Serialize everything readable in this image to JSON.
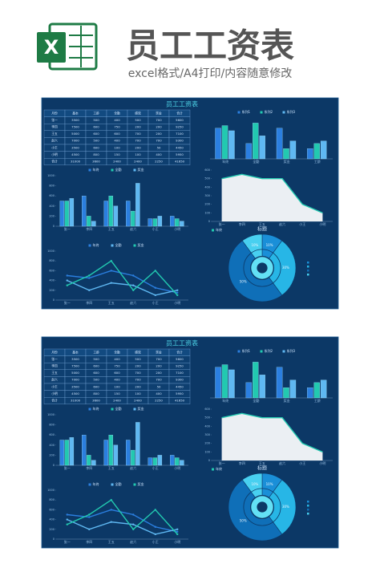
{
  "header": {
    "icon_letter": "X",
    "title": "员工工资表",
    "subtitle": "excel格式/A4打印/内容随意修改"
  },
  "dashboard": {
    "title": "员工工资表",
    "table": {
      "columns": [
        "月份",
        "基本",
        "工龄",
        "全勤",
        "绩效",
        "奖金",
        "合计"
      ],
      "rows": [
        [
          "张一",
          "3500",
          "500",
          "400",
          "500",
          "700",
          "5600"
        ],
        [
          "李四",
          "7500",
          "600",
          "750",
          "200",
          "200",
          "9250"
        ],
        [
          "王五",
          "5000",
          "600",
          "600",
          "700",
          "200",
          "7100"
        ],
        [
          "赵六",
          "7000",
          "500",
          "400",
          "700",
          "700",
          "9300"
        ],
        [
          "小王",
          "3500",
          "600",
          "100",
          "200",
          "50",
          "4450"
        ],
        [
          "小明",
          "4500",
          "800",
          "150",
          "100",
          "400",
          "5950"
        ],
        [
          "合计",
          "31000",
          "3600",
          "2400",
          "2400",
          "2250",
          "41650"
        ]
      ]
    },
    "charts": [
      {
        "type": "bar",
        "legend": "top",
        "categories": [
          "年终",
          "全勤",
          "奖金",
          "工龄"
        ],
        "series": [
          {
            "name": "系列1",
            "color": "#2b7fe0",
            "values": [
              600,
              300,
              600,
              200
            ]
          },
          {
            "name": "系列2",
            "color": "#22c9b0",
            "values": [
              650,
              700,
              200,
              300
            ]
          },
          {
            "name": "系列3",
            "color": "#5fb8f2",
            "values": [
              550,
              450,
              350,
              350
            ]
          }
        ],
        "ylim": [
          0,
          800
        ]
      },
      {
        "type": "bar",
        "legend": "top",
        "categories": [
          "张一",
          "李四",
          "王五",
          "赵六",
          "小王",
          "小明"
        ],
        "series": [
          {
            "name": "年终",
            "color": "#2b7fe0",
            "values": [
              500,
              600,
              500,
              500,
              150,
              200
            ]
          },
          {
            "name": "全勤",
            "color": "#22c9b0",
            "values": [
              500,
              200,
              600,
              300,
              150,
              150
            ]
          },
          {
            "name": "奖金",
            "color": "#5fb8f2",
            "values": [
              550,
              100,
              400,
              850,
              200,
              100
            ]
          }
        ],
        "ylim": [
          0,
          1000
        ],
        "yticks": [
          0,
          200,
          400,
          600,
          800,
          1000
        ]
      },
      {
        "type": "area",
        "legend": "bottom",
        "categories": [
          "张一",
          "李四",
          "王五",
          "赵六",
          "小王",
          "小明"
        ],
        "series": [
          {
            "name": "年终",
            "color": "#22c9b0",
            "values": [
              500,
              550,
              500,
              500,
              200,
              100
            ]
          }
        ],
        "ylim": [
          0,
          600
        ],
        "yticks": [
          0,
          100,
          200,
          300,
          400,
          500,
          600
        ]
      },
      {
        "type": "line",
        "legend": "top",
        "categories": [
          "张一",
          "李四",
          "王五",
          "赵六",
          "小王",
          "小明"
        ],
        "series": [
          {
            "name": "年终",
            "color": "#2b7fe0",
            "values": [
              500,
              450,
              600,
              500,
              250,
              150
            ]
          },
          {
            "name": "全勤",
            "color": "#5fb8f2",
            "values": [
              400,
              200,
              350,
              300,
              100,
              200
            ]
          },
          {
            "name": "奖金",
            "color": "#22c9b0",
            "values": [
              300,
              500,
              800,
              200,
              600,
              100
            ]
          }
        ],
        "ylim": [
          0,
          1000
        ],
        "yticks": [
          0,
          200,
          400,
          600,
          800,
          1000
        ]
      },
      {
        "type": "pie",
        "title": "标题",
        "values": [
          10,
          30,
          50,
          10
        ],
        "value_labels": [
          "10%",
          "30%",
          "50%",
          "10%"
        ],
        "colors": [
          "#1a8fd8",
          "#27b6e6",
          "#0f6fb8",
          "#48d0f0"
        ]
      }
    ]
  }
}
